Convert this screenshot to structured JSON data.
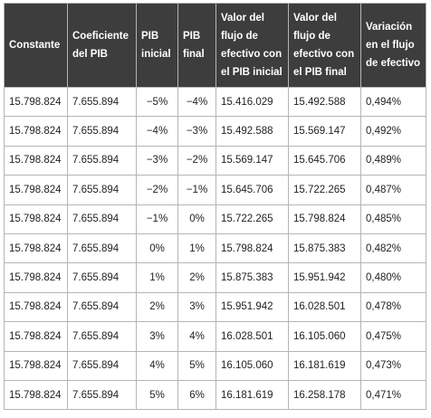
{
  "table": {
    "headers": [
      "Constante",
      "Coeficiente del PIB",
      "PIB inicial",
      "PIB final",
      "Valor del flujo de efectivo con el PIB inicial",
      "Valor del flujo de efectivo con el PIB final",
      "Variación en el flujo de efectivo"
    ],
    "rows": [
      [
        "15.798.824",
        "7.655.894",
        "−5%",
        "−4%",
        "15.416.029",
        "15.492.588",
        "0,494%"
      ],
      [
        "15.798.824",
        "7.655.894",
        "−4%",
        "−3%",
        "15.492.588",
        "15.569.147",
        "0,492%"
      ],
      [
        "15.798.824",
        "7.655.894",
        "−3%",
        "−2%",
        "15.569.147",
        "15.645.706",
        "0,489%"
      ],
      [
        "15.798.824",
        "7.655.894",
        "−2%",
        "−1%",
        "15.645.706",
        "15.722.265",
        "0,487%"
      ],
      [
        "15.798.824",
        "7.655.894",
        "−1%",
        "0%",
        "15.722.265",
        "15.798.824",
        "0,485%"
      ],
      [
        "15.798.824",
        "7.655.894",
        "0%",
        "1%",
        "15.798.824",
        "15.875.383",
        "0,482%"
      ],
      [
        "15.798.824",
        "7.655.894",
        "1%",
        "2%",
        "15.875.383",
        "15.951.942",
        "0,480%"
      ],
      [
        "15.798.824",
        "7.655.894",
        "2%",
        "3%",
        "15.951.942",
        "16.028.501",
        "0,478%"
      ],
      [
        "15.798.824",
        "7.655.894",
        "3%",
        "4%",
        "16.028.501",
        "16.105.060",
        "0,475%"
      ],
      [
        "15.798.824",
        "7.655.894",
        "4%",
        "5%",
        "16.105.060",
        "16.181.619",
        "0,473%"
      ],
      [
        "15.798.824",
        "7.655.894",
        "5%",
        "6%",
        "16.181.619",
        "16.258.178",
        "0,471%"
      ]
    ]
  }
}
